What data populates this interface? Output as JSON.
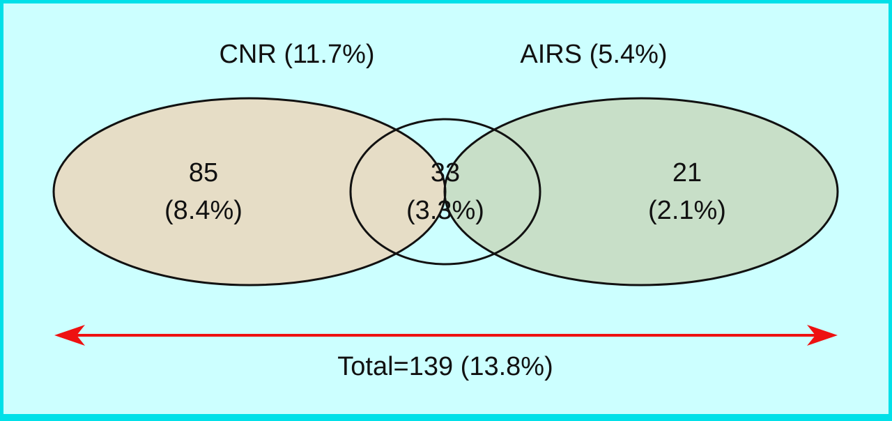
{
  "sets": {
    "left": {
      "name": "CNR (11.7%)",
      "only_count": "85",
      "only_pct": "(8.4%)",
      "fill": "#e6ddc6"
    },
    "right": {
      "name": "AIRS (5.4%)",
      "only_count": "21",
      "only_pct": "(2.1%)",
      "fill": "#c8dfc8"
    },
    "overlap": {
      "count": "33",
      "pct": "(3.3%)",
      "fill": "#cfe0c6"
    }
  },
  "total": {
    "label": "Total=139 (13.8%)",
    "arrow_color": "#ee1111"
  },
  "colors": {
    "frame": "#00e0e8",
    "background": "#ccffff",
    "outline": "#111111"
  }
}
